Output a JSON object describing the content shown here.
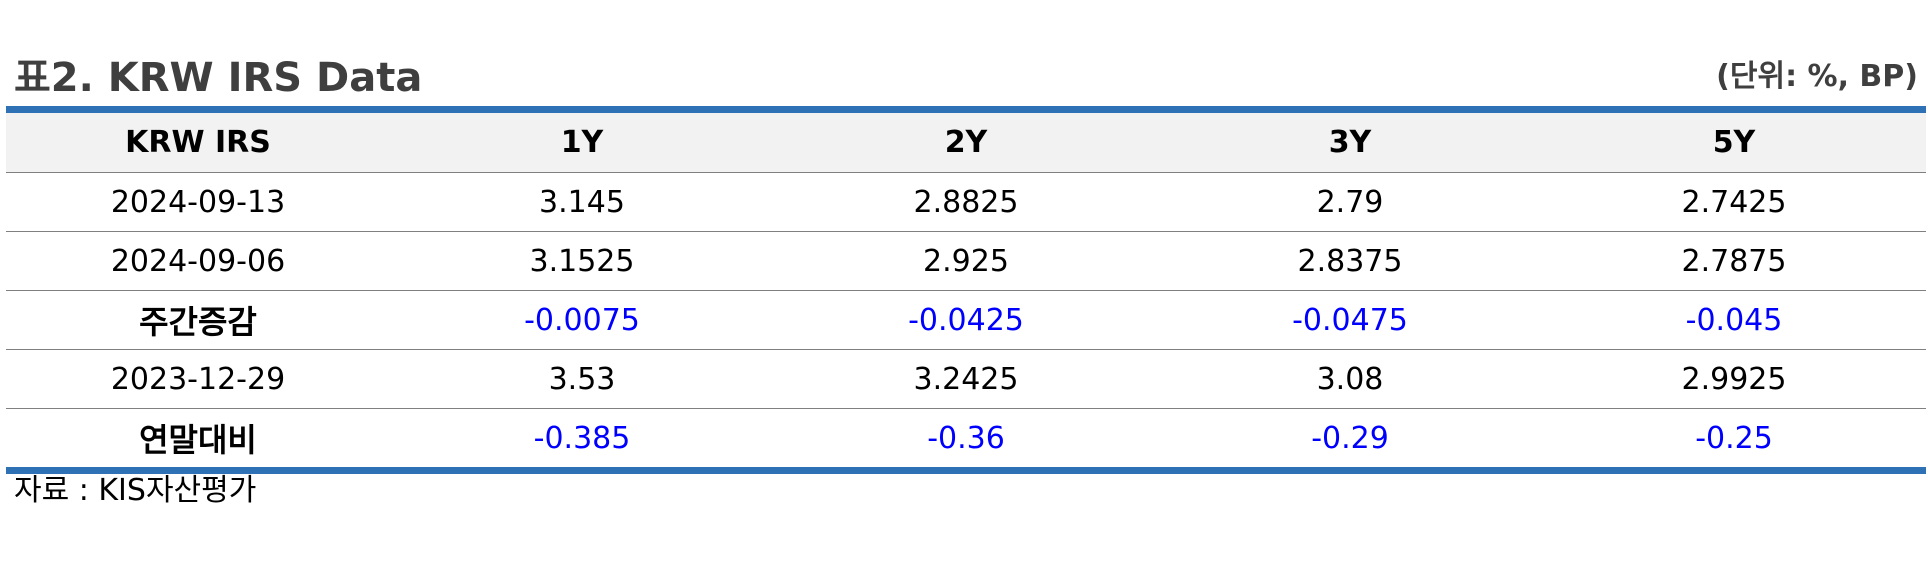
{
  "title": "표2. KRW IRS Data",
  "unit": "(단위: %, BP)",
  "table": {
    "headers": [
      "KRW IRS",
      "1Y",
      "2Y",
      "3Y",
      "5Y"
    ],
    "rows": [
      {
        "label": "2024-09-13",
        "values": [
          "3.145",
          "2.8825",
          "2.79",
          "2.7425"
        ],
        "bold": false,
        "negative": false
      },
      {
        "label": "2024-09-06",
        "values": [
          "3.1525",
          "2.925",
          "2.8375",
          "2.7875"
        ],
        "bold": false,
        "negative": false
      },
      {
        "label": "주간증감",
        "values": [
          "-0.0075",
          "-0.0425",
          "-0.0475",
          "-0.045"
        ],
        "bold": true,
        "negative": true
      },
      {
        "label": "2023-12-29",
        "values": [
          "3.53",
          "3.2425",
          "3.08",
          "2.9925"
        ],
        "bold": false,
        "negative": false
      },
      {
        "label": "연말대비",
        "values": [
          "-0.385",
          "-0.36",
          "-0.29",
          "-0.25"
        ],
        "bold": true,
        "negative": true
      }
    ]
  },
  "source": "자료 : KIS자산평가",
  "colors": {
    "rule": "#2e72b5",
    "header_bg": "#f2f2f2",
    "negative": "#0000ff",
    "title": "#3f3f3f"
  }
}
